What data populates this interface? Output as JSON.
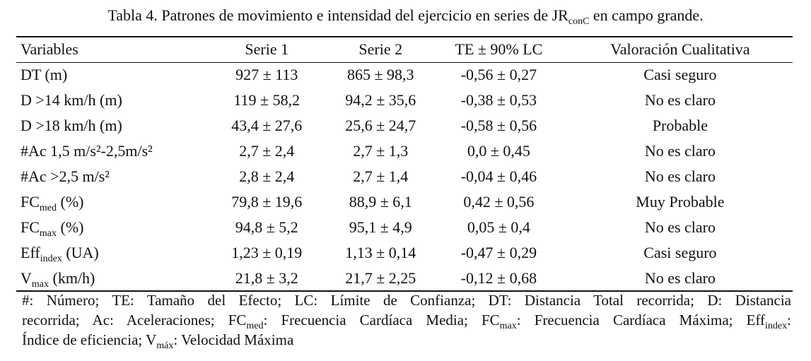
{
  "caption": {
    "prefix": "Tabla 4. Patrones de movimiento e intensidad del ejercicio en series de JR",
    "sub": "conC",
    "suffix": " en campo grande."
  },
  "headers": [
    "Variables",
    "Serie 1",
    "Serie 2",
    "TE ± 90% LC",
    "Valoración Cualitativa"
  ],
  "rows": [
    {
      "var": "DT (m)",
      "var_sub": "",
      "var_after": "",
      "s1": "927 ± 113",
      "s2": "865 ± 98,3",
      "te": "-0,56 ± 0,27",
      "val": "Casi seguro"
    },
    {
      "var": "D >14 km/h (m)",
      "var_sub": "",
      "var_after": "",
      "s1": "119 ± 58,2",
      "s2": "94,2 ± 35,6",
      "te": "-0,38 ± 0,53",
      "val": "No es claro"
    },
    {
      "var": "D >18 km/h (m)",
      "var_sub": "",
      "var_after": "",
      "s1": "43,4 ± 27,6",
      "s2": "25,6 ± 24,7",
      "te": "-0,58 ± 0,56",
      "val": "Probable"
    },
    {
      "var": "#Ac 1,5 m/s²-2,5m/s²",
      "var_sub": "",
      "var_after": "",
      "s1": "2,7 ± 2,4",
      "s2": "2,7 ± 1,3",
      "te": "0,0 ± 0,45",
      "val": "No es claro"
    },
    {
      "var": "#Ac >2,5 m/s²",
      "var_sub": "",
      "var_after": "",
      "s1": "2,8 ± 2,4",
      "s2": "2,7 ± 1,4",
      "te": "-0,04 ± 0,46",
      "val": "No es claro"
    },
    {
      "var": "FC",
      "var_sub": "med",
      "var_after": " (%)",
      "s1": "79,8 ± 19,6",
      "s2": "88,9 ± 6,1",
      "te": "0,42 ± 0,56",
      "val": "Muy Probable"
    },
    {
      "var": "FC",
      "var_sub": "max",
      "var_after": " (%)",
      "s1": "94,8 ± 5,2",
      "s2": "95,1 ± 4,9",
      "te": "0,05 ± 0,4",
      "val": "No es claro"
    },
    {
      "var": "Eff",
      "var_sub": "index",
      "var_after": " (UA)",
      "s1": "1,23 ± 0,19",
      "s2": "1,13 ± 0,14",
      "te": "-0,47 ± 0,29",
      "val": "Casi seguro"
    },
    {
      "var": "V",
      "var_sub": "max",
      "var_after": " (km/h)",
      "s1": "21,8 ± 3,2",
      "s2": "21,7 ± 2,25",
      "te": "-0,12 ± 0,68",
      "val": "No es claro"
    }
  ],
  "footnote": {
    "p1": "#: Número; TE: Tamaño del Efecto; LC: Límite de Confianza; DT: Distancia Total recorrida; D: Distancia",
    "p2": "recorrida; Ac: Aceleraciones; FC",
    "p2_sub1": "med",
    "p3": ": Frecuencia Cardíaca Media; FC",
    "p3_sub": "max",
    "p4": ": Frecuencia Cardíaca Máxima; Eff",
    "p4_sub": "index",
    "p5": ":",
    "p6": "Índice de eficiencia; V",
    "p6_sub": "máx",
    "p7": ": Velocidad Máxima"
  }
}
